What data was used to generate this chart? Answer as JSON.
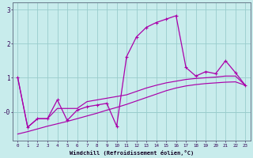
{
  "x": [
    0,
    1,
    2,
    3,
    4,
    5,
    6,
    7,
    8,
    9,
    10,
    11,
    12,
    13,
    14,
    15,
    16,
    17,
    18,
    19,
    20,
    21,
    22,
    23
  ],
  "line_jagged": [
    1.0,
    -0.45,
    -0.2,
    -0.2,
    0.35,
    -0.25,
    0.05,
    0.15,
    0.2,
    0.25,
    -0.42,
    1.62,
    2.2,
    2.48,
    2.62,
    2.72,
    2.82,
    1.3,
    1.05,
    1.18,
    1.12,
    1.5,
    1.15,
    0.78
  ],
  "line_upper": [
    1.0,
    -0.45,
    -0.2,
    -0.2,
    0.1,
    0.1,
    0.1,
    0.3,
    0.35,
    0.4,
    0.45,
    0.5,
    0.6,
    0.7,
    0.78,
    0.85,
    0.9,
    0.95,
    0.98,
    1.0,
    1.02,
    1.05,
    1.05,
    0.78
  ],
  "line_lower": [
    -0.65,
    -0.58,
    -0.5,
    -0.42,
    -0.35,
    -0.28,
    -0.2,
    -0.12,
    -0.04,
    0.05,
    0.13,
    0.22,
    0.32,
    0.42,
    0.52,
    0.62,
    0.7,
    0.76,
    0.8,
    0.83,
    0.85,
    0.87,
    0.88,
    0.78
  ],
  "bg_color": "#c8ecec",
  "line_color": "#aa00aa",
  "grid_color": "#99cccc",
  "spine_color": "#667788",
  "xlabel": "Windchill (Refroidissement éolien,°C)",
  "ylim": [
    -0.85,
    3.2
  ],
  "xlim": [
    -0.5,
    23.5
  ],
  "yticks": [
    0,
    1,
    2,
    3
  ],
  "ytick_labels": [
    "-0",
    "1",
    "2",
    "3"
  ]
}
